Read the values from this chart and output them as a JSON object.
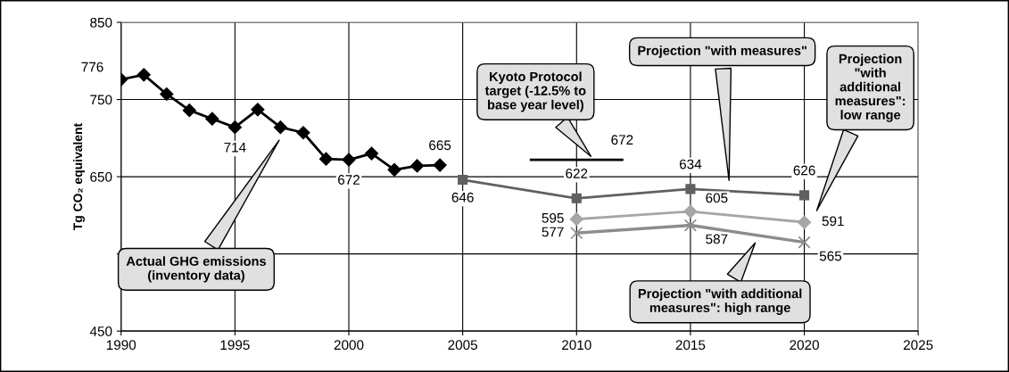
{
  "chart_data": {
    "type": "line",
    "ylabel": "Tg CO₂ equivalent",
    "xlim": [
      1990,
      2025
    ],
    "xticks": [
      1990,
      1995,
      2000,
      2005,
      2010,
      2015,
      2020,
      2025
    ],
    "ylim": [
      450,
      850
    ],
    "yticks": [
      450,
      {
        "value": 550,
        "label": null
      },
      650,
      750,
      850
    ],
    "grid": true,
    "line_style": "solid",
    "series": [
      {
        "color": "#000000",
        "marker": "diamond",
        "x": [
          1990,
          1991,
          1992,
          1993,
          1994,
          1995,
          1996,
          1997,
          1998,
          1999,
          2000,
          2001,
          2002,
          2003,
          2004
        ],
        "values": [
          776,
          782,
          757,
          736,
          725,
          714,
          737,
          714,
          707,
          673,
          672,
          680,
          659,
          664,
          665
        ],
        "value_labels": [
          "776",
          null,
          null,
          null,
          null,
          "714",
          null,
          null,
          null,
          null,
          "672",
          null,
          null,
          null,
          "665"
        ]
      },
      {
        "color": "#606060",
        "marker": "square",
        "x": [
          2005,
          2010,
          2015,
          2020
        ],
        "values": [
          646,
          622,
          634,
          626
        ],
        "value_labels": [
          "646",
          "622",
          "634",
          "626"
        ]
      },
      {
        "color": "#a6a6a6",
        "marker": "diamond",
        "x": [
          2010,
          2015,
          2020
        ],
        "values": [
          595,
          605,
          591
        ],
        "value_labels": [
          "595",
          "605",
          "591"
        ]
      },
      {
        "color": "#8c8c8c",
        "marker": "cross",
        "x": [
          2010,
          2015,
          2020
        ],
        "values": [
          577,
          587,
          565
        ],
        "value_labels": [
          "577",
          "587",
          "565"
        ]
      },
      {
        "color": "#000000",
        "marker": "none",
        "x": [
          2008,
          2012
        ],
        "values": [
          672,
          672
        ],
        "value_labels": [
          null,
          "672"
        ]
      }
    ],
    "annotations": [
      "Actual GHG emissions\n(inventory data)",
      "Kyoto Protocol\ntarget (-12.5% to\nbase year level)",
      "Projection \"with measures\"",
      "Projection\n\"with\nadditional\nmeasures\":\nlow range",
      "Projection \"with additional\nmeasures\": high range"
    ]
  }
}
